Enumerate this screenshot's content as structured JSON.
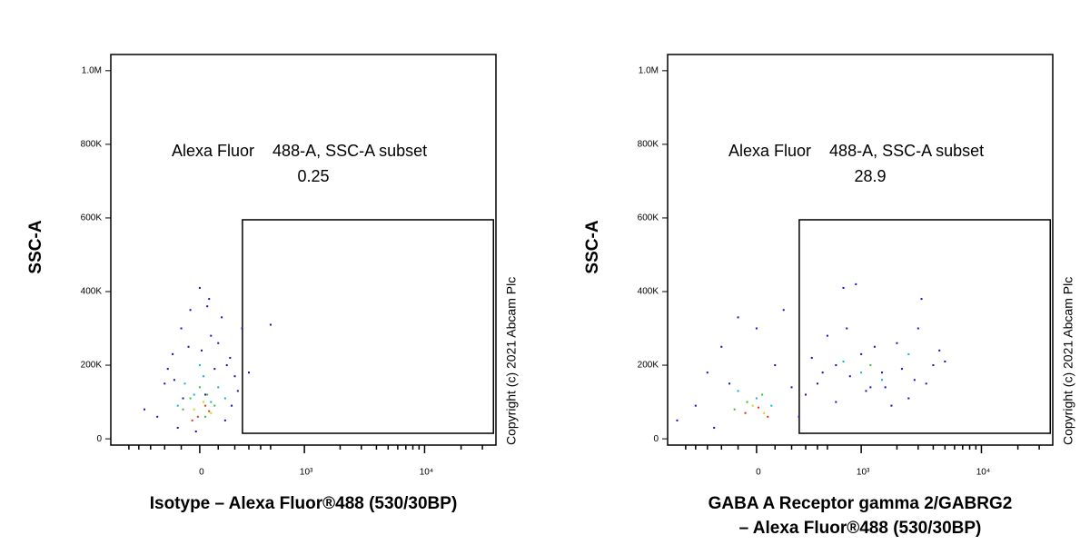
{
  "chart_data": [
    {
      "type": "scatter",
      "ylabel": "SSC-A",
      "xlabel": [
        "Isotype – Alexa Fluor®488 (530/30BP)"
      ],
      "annotation": "Alexa Fluor    488-A, SSC-A subset",
      "gate_value": "0.25",
      "copyright": "Copyright (c) 2021 Abcam Plc",
      "x_scale": "arcsinh",
      "x_cofactor": 279,
      "xlim": [
        -730,
        38800
      ],
      "ylim": [
        -17000,
        1044000
      ],
      "xticks": [
        0,
        {
          "value": 1000,
          "label": "10³"
        },
        {
          "value": 10000,
          "label": "10⁴"
        }
      ],
      "xminorticks": [
        -500,
        -400,
        -300,
        -200,
        -100,
        100,
        200,
        300,
        400,
        500,
        2000,
        3000,
        4000,
        5000,
        6000,
        7000,
        8000,
        9000,
        20000,
        30000
      ],
      "yticks": [
        0,
        {
          "value": 200000,
          "label": "200K"
        },
        {
          "value": 400000,
          "label": "400K"
        },
        {
          "value": 600000,
          "label": "600K"
        },
        {
          "value": 800000,
          "label": "800K"
        },
        {
          "value": 1000000,
          "label": "1.0M"
        }
      ],
      "gate": {
        "x": [
          252,
          37000
        ],
        "y": [
          15000,
          595000
        ]
      },
      "series": [
        {
          "color": "#1010c0",
          "x": [
            -350,
            -200,
            -150,
            -100,
            -50,
            0,
            50,
            100,
            150,
            200,
            250,
            -250,
            -120,
            30,
            80,
            180,
            -60,
            120,
            300,
            500,
            -180,
            60,
            -20,
            140,
            220,
            40,
            -90,
            10,
            170,
            -140
          ],
          "values": [
            80000,
            150000,
            230000,
            300000,
            350000,
            410000,
            380000,
            260000,
            200000,
            170000,
            300000,
            60000,
            30000,
            120000,
            190000,
            90000,
            250000,
            330000,
            180000,
            310000,
            190000,
            280000,
            20000,
            50000,
            130000,
            360000,
            110000,
            240000,
            220000,
            160000
          ]
        },
        {
          "color": "#00b8d0",
          "x": [
            -80,
            -30,
            20,
            60,
            100,
            -120,
            140,
            0
          ],
          "values": [
            150000,
            120000,
            170000,
            100000,
            140000,
            90000,
            110000,
            200000
          ]
        },
        {
          "color": "#30c030",
          "x": [
            -50,
            0,
            40,
            80,
            -90,
            30
          ],
          "values": [
            110000,
            140000,
            120000,
            90000,
            80000,
            60000
          ]
        },
        {
          "color": "#e0d000",
          "x": [
            -30,
            20,
            60
          ],
          "values": [
            80000,
            100000,
            70000
          ]
        },
        {
          "color": "#e03010",
          "x": [
            -10,
            30,
            -40,
            50
          ],
          "values": [
            60000,
            90000,
            50000,
            75000
          ]
        }
      ]
    },
    {
      "type": "scatter",
      "ylabel": "SSC-A",
      "xlabel": [
        "GABA A Receptor gamma 2/GABRG2",
        "– Alexa Fluor®488 (530/30BP)"
      ],
      "annotation": "Alexa Fluor    488-A, SSC-A subset",
      "gate_value": "28.9",
      "copyright": "Copyright (c) 2021 Abcam Plc",
      "x_scale": "arcsinh",
      "x_cofactor": 279,
      "xlim": [
        -730,
        38800
      ],
      "ylim": [
        -17000,
        1044000
      ],
      "xticks": [
        0,
        {
          "value": 1000,
          "label": "10³"
        },
        {
          "value": 10000,
          "label": "10⁴"
        }
      ],
      "xminorticks": [
        -500,
        -400,
        -300,
        -200,
        -100,
        100,
        200,
        300,
        400,
        500,
        2000,
        3000,
        4000,
        5000,
        6000,
        7000,
        8000,
        9000,
        20000,
        30000
      ],
      "yticks": [
        0,
        {
          "value": 200000,
          "label": "200K"
        },
        {
          "value": 400000,
          "label": "400K"
        },
        {
          "value": 600000,
          "label": "600K"
        },
        {
          "value": 800000,
          "label": "800K"
        },
        {
          "value": 1000000,
          "label": "1.0M"
        }
      ],
      "gate": {
        "x": [
          252,
          37000
        ],
        "y": [
          15000,
          595000
        ]
      },
      "series": [
        {
          "color": "#1010c0",
          "x": [
            -600,
            -400,
            -300,
            -200,
            -100,
            0,
            100,
            200,
            300,
            -250,
            150,
            400,
            600,
            800,
            1000,
            1200,
            1500,
            2000,
            2500,
            3000,
            3500,
            4000,
            4500,
            700,
            900,
            1100,
            1800,
            2200,
            500,
            5000,
            1300,
            600,
            2800,
            350,
            1600,
            -150,
            250,
            450,
            750,
            3200
          ],
          "values": [
            50000,
            90000,
            180000,
            250000,
            330000,
            300000,
            200000,
            140000,
            120000,
            30000,
            350000,
            150000,
            200000,
            170000,
            230000,
            140000,
            180000,
            260000,
            110000,
            300000,
            150000,
            200000,
            240000,
            410000,
            420000,
            130000,
            90000,
            190000,
            280000,
            210000,
            250000,
            100000,
            160000,
            220000,
            140000,
            150000,
            60000,
            180000,
            300000,
            380000
          ]
        },
        {
          "color": "#00b8d0",
          "x": [
            -100,
            0,
            80,
            1000,
            1500,
            700,
            2500
          ],
          "values": [
            130000,
            110000,
            90000,
            180000,
            160000,
            210000,
            230000
          ]
        },
        {
          "color": "#30c030",
          "x": [
            -50,
            30,
            -120,
            1200
          ],
          "values": [
            100000,
            120000,
            80000,
            200000
          ]
        },
        {
          "color": "#e0d000",
          "x": [
            -20,
            40
          ],
          "values": [
            90000,
            70000
          ]
        },
        {
          "color": "#e03010",
          "x": [
            -60,
            10,
            60
          ],
          "values": [
            70000,
            85000,
            60000
          ]
        }
      ]
    }
  ]
}
